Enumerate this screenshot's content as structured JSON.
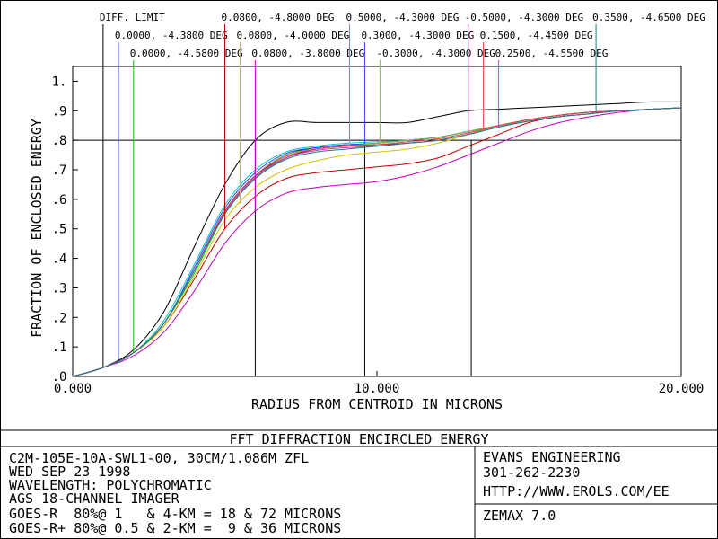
{
  "chart_data": {
    "type": "line",
    "ylabel": "FRACTION OF ENCLOSED ENERGY",
    "xlabel": "RADIUS FROM CENTROID IN MICRONS",
    "xlim": [
      0,
      20
    ],
    "ylim": [
      0,
      1.05
    ],
    "x_ticks": [
      {
        "value": 0,
        "label": "0.000"
      },
      {
        "value": 10,
        "label": "10.000"
      },
      {
        "value": 20,
        "label": "20.000"
      }
    ],
    "y_ticks": [
      {
        "value": 0.0,
        "label": ".0"
      },
      {
        "value": 0.1,
        "label": ".1"
      },
      {
        "value": 0.2,
        "label": ".2"
      },
      {
        "value": 0.3,
        "label": ".3"
      },
      {
        "value": 0.4,
        "label": ".4"
      },
      {
        "value": 0.5,
        "label": ".5"
      },
      {
        "value": 0.6,
        "label": ".6"
      },
      {
        "value": 0.7,
        "label": ".7"
      },
      {
        "value": 0.8,
        "label": ".8"
      },
      {
        "value": 0.9,
        "label": ".9"
      },
      {
        "value": 1.0,
        "label": "1."
      }
    ],
    "reference_line_y": 0.8,
    "reference_markers_x": [
      6.0,
      9.6,
      13.1
    ],
    "series": [
      {
        "name": "DIFF. LIMIT",
        "color": "#000000",
        "x": [
          0,
          1,
          2,
          3,
          4,
          5,
          6,
          7,
          8,
          9,
          10,
          11,
          12,
          13,
          14,
          15,
          16,
          17,
          18,
          19,
          20
        ],
        "y": [
          0,
          0.03,
          0.09,
          0.22,
          0.44,
          0.65,
          0.8,
          0.86,
          0.86,
          0.86,
          0.86,
          0.86,
          0.88,
          0.9,
          0.905,
          0.91,
          0.915,
          0.92,
          0.925,
          0.93,
          0.93
        ]
      },
      {
        "name": "0.0000, -4.3800 DEG",
        "color": "#000080",
        "x": [
          0,
          1,
          2,
          3,
          4,
          5,
          6,
          7,
          8,
          9,
          10,
          11,
          12,
          13,
          14,
          15,
          16,
          17,
          18,
          19,
          20
        ],
        "y": [
          0,
          0.03,
          0.08,
          0.18,
          0.36,
          0.56,
          0.68,
          0.75,
          0.775,
          0.785,
          0.79,
          0.8,
          0.81,
          0.83,
          0.85,
          0.87,
          0.885,
          0.895,
          0.9,
          0.905,
          0.91
        ]
      },
      {
        "name": "0.0000, -4.5800 DEG",
        "color": "#00c000",
        "x": [
          0,
          1,
          2,
          3,
          4,
          5,
          6,
          7,
          8,
          9,
          10,
          11,
          12,
          13,
          14,
          15,
          16,
          17,
          18,
          19,
          20
        ],
        "y": [
          0,
          0.03,
          0.08,
          0.18,
          0.35,
          0.55,
          0.67,
          0.74,
          0.77,
          0.78,
          0.79,
          0.8,
          0.81,
          0.83,
          0.85,
          0.87,
          0.885,
          0.895,
          0.9,
          0.905,
          0.91
        ]
      },
      {
        "name": "0.0800, -4.8000 DEG",
        "color": "#c00000",
        "x": [
          0,
          1,
          2,
          3,
          4,
          5,
          6,
          7,
          8,
          9,
          10,
          11,
          12,
          13,
          14,
          15,
          16,
          17,
          18,
          19,
          20
        ],
        "y": [
          0,
          0.03,
          0.08,
          0.17,
          0.33,
          0.5,
          0.61,
          0.67,
          0.69,
          0.7,
          0.71,
          0.72,
          0.74,
          0.78,
          0.82,
          0.86,
          0.88,
          0.89,
          0.9,
          0.905,
          0.91
        ]
      },
      {
        "name": "0.0800, -4.0000 DEG",
        "color": "#d4c000",
        "x": [
          0,
          1,
          2,
          3,
          4,
          5,
          6,
          7,
          8,
          9,
          10,
          11,
          12,
          13,
          14,
          15,
          16,
          17,
          18,
          19,
          20
        ],
        "y": [
          0,
          0.03,
          0.08,
          0.17,
          0.34,
          0.53,
          0.64,
          0.7,
          0.73,
          0.75,
          0.76,
          0.77,
          0.79,
          0.82,
          0.85,
          0.87,
          0.885,
          0.895,
          0.9,
          0.905,
          0.91
        ]
      },
      {
        "name": "0.0800, -3.8000 DEG",
        "color": "#c000c0",
        "x": [
          0,
          1,
          2,
          3,
          4,
          5,
          6,
          7,
          8,
          9,
          10,
          11,
          12,
          13,
          14,
          15,
          16,
          17,
          18,
          19,
          20
        ],
        "y": [
          0,
          0.03,
          0.07,
          0.15,
          0.29,
          0.45,
          0.56,
          0.62,
          0.64,
          0.65,
          0.66,
          0.68,
          0.71,
          0.75,
          0.79,
          0.83,
          0.86,
          0.88,
          0.895,
          0.905,
          0.91
        ]
      },
      {
        "name": "0.5000, -4.3000 DEG",
        "color": "#00c8c8",
        "x": [
          0,
          1,
          2,
          3,
          4,
          5,
          6,
          7,
          8,
          9,
          10,
          11,
          12,
          13,
          14,
          15,
          16,
          17,
          18,
          19,
          20
        ],
        "y": [
          0,
          0.03,
          0.08,
          0.19,
          0.38,
          0.58,
          0.7,
          0.76,
          0.78,
          0.79,
          0.795,
          0.8,
          0.81,
          0.83,
          0.85,
          0.87,
          0.885,
          0.895,
          0.9,
          0.905,
          0.91
        ]
      },
      {
        "name": "0.3000, -4.3000 DEG",
        "color": "#4040ff",
        "x": [
          0,
          1,
          2,
          3,
          4,
          5,
          6,
          7,
          8,
          9,
          10,
          11,
          12,
          13,
          14,
          15,
          16,
          17,
          18,
          19,
          20
        ],
        "y": [
          0,
          0.03,
          0.08,
          0.18,
          0.37,
          0.57,
          0.69,
          0.755,
          0.775,
          0.785,
          0.79,
          0.8,
          0.81,
          0.83,
          0.85,
          0.87,
          0.885,
          0.895,
          0.9,
          0.905,
          0.91
        ]
      },
      {
        "name": "-0.3000, -4.3000 DEG",
        "color": "#80c040",
        "x": [
          0,
          1,
          2,
          3,
          4,
          5,
          6,
          7,
          8,
          9,
          10,
          11,
          12,
          13,
          14,
          15,
          16,
          17,
          18,
          19,
          20
        ],
        "y": [
          0,
          0.03,
          0.08,
          0.18,
          0.36,
          0.56,
          0.68,
          0.75,
          0.77,
          0.78,
          0.79,
          0.8,
          0.81,
          0.83,
          0.85,
          0.87,
          0.885,
          0.895,
          0.9,
          0.905,
          0.91
        ]
      },
      {
        "name": "-0.5000, -4.3000 DEG",
        "color": "#a00060",
        "x": [
          0,
          1,
          2,
          3,
          4,
          5,
          6,
          7,
          8,
          9,
          10,
          11,
          12,
          13,
          14,
          15,
          16,
          17,
          18,
          19,
          20
        ],
        "y": [
          0,
          0.03,
          0.08,
          0.18,
          0.36,
          0.56,
          0.68,
          0.74,
          0.77,
          0.78,
          0.785,
          0.79,
          0.8,
          0.82,
          0.845,
          0.865,
          0.88,
          0.89,
          0.9,
          0.905,
          0.91
        ]
      },
      {
        "name": "0.1500, -4.4500 DEG",
        "color": "#e04040",
        "x": [
          0,
          1,
          2,
          3,
          4,
          5,
          6,
          7,
          8,
          9,
          10,
          11,
          12,
          13,
          14,
          15,
          16,
          17,
          18,
          19,
          20
        ],
        "y": [
          0,
          0.03,
          0.08,
          0.18,
          0.36,
          0.56,
          0.68,
          0.745,
          0.77,
          0.78,
          0.785,
          0.795,
          0.805,
          0.825,
          0.85,
          0.87,
          0.885,
          0.895,
          0.9,
          0.905,
          0.91
        ]
      },
      {
        "name": "0.2500, -4.5500 DEG",
        "color": "#c040c0",
        "x": [
          0,
          1,
          2,
          3,
          4,
          5,
          6,
          7,
          8,
          9,
          10,
          11,
          12,
          13,
          14,
          15,
          16,
          17,
          18,
          19,
          20
        ],
        "y": [
          0,
          0.03,
          0.08,
          0.18,
          0.36,
          0.555,
          0.675,
          0.74,
          0.765,
          0.775,
          0.78,
          0.79,
          0.8,
          0.82,
          0.845,
          0.865,
          0.88,
          0.89,
          0.9,
          0.905,
          0.91
        ]
      },
      {
        "name": "0.3500, -4.6500 DEG",
        "color": "#208080",
        "x": [
          0,
          1,
          2,
          3,
          4,
          5,
          6,
          7,
          8,
          9,
          10,
          11,
          12,
          13,
          14,
          15,
          16,
          17,
          18,
          19,
          20
        ],
        "y": [
          0,
          0.03,
          0.08,
          0.18,
          0.36,
          0.55,
          0.67,
          0.735,
          0.76,
          0.77,
          0.78,
          0.79,
          0.8,
          0.82,
          0.845,
          0.865,
          0.88,
          0.89,
          0.9,
          0.905,
          0.91
        ]
      }
    ],
    "label_lines": [
      {
        "label": "DIFF. LIMIT",
        "color": "#000000",
        "x_value": 1.0
      },
      {
        "label": "0.0000, -4.3800 DEG",
        "color": "#000080",
        "x_value": 1.5
      },
      {
        "label": "0.0000, -4.5800 DEG",
        "color": "#00c000",
        "x_value": 2.0
      },
      {
        "label": "0.0800, -4.8000 DEG",
        "color": "#c00000",
        "x_value": 5.0
      },
      {
        "label": "0.0800, -4.0000 DEG",
        "color": "#d4c000",
        "x_value": 5.5
      },
      {
        "label": "0.0800, -3.8000 DEG",
        "color": "#c000c0",
        "x_value": 6.0
      },
      {
        "label": "0.5000, -4.3000 DEG",
        "color": "#00c8c8",
        "x_value": 9.1
      },
      {
        "label": "0.3000, -4.3000 DEG",
        "color": "#4040ff",
        "x_value": 9.6
      },
      {
        "label": "-0.3000, -4.3000 DEG",
        "color": "#80c040",
        "x_value": 10.1
      },
      {
        "label": "-0.5000, -4.3000 DEG",
        "color": "#a00060",
        "x_value": 13.0
      },
      {
        "label": "0.1500, -4.4500 DEG",
        "color": "#e04040",
        "x_value": 13.5
      },
      {
        "label": "0.2500, -4.5500 DEG",
        "color": "#c040c0",
        "x_value": 14.0
      },
      {
        "label": "0.3500, -4.6500 DEG",
        "color": "#208080",
        "x_value": 17.2
      }
    ]
  },
  "footer": {
    "title": "FFT DIFFRACTION ENCIRCLED ENERGY",
    "left_lines": [
      "C2M-105E-10A-SWL1-00, 30CM/1.086M ZFL",
      "WED SEP 23 1998",
      "WAVELENGTH: POLYCHROMATIC",
      "AGS 18-CHANNEL IMAGER",
      "GOES-R  80%@ 1   & 4-KM = 18 & 72 MICRONS",
      "GOES-R+ 80%@ 0.5 & 2-KM =  9 & 36 MICRONS"
    ],
    "company": "EVANS ENGINEERING",
    "phone": "301-262-2230",
    "url": "HTTP://WWW.EROLS.COM/EE",
    "software": "ZEMAX 7.0"
  }
}
